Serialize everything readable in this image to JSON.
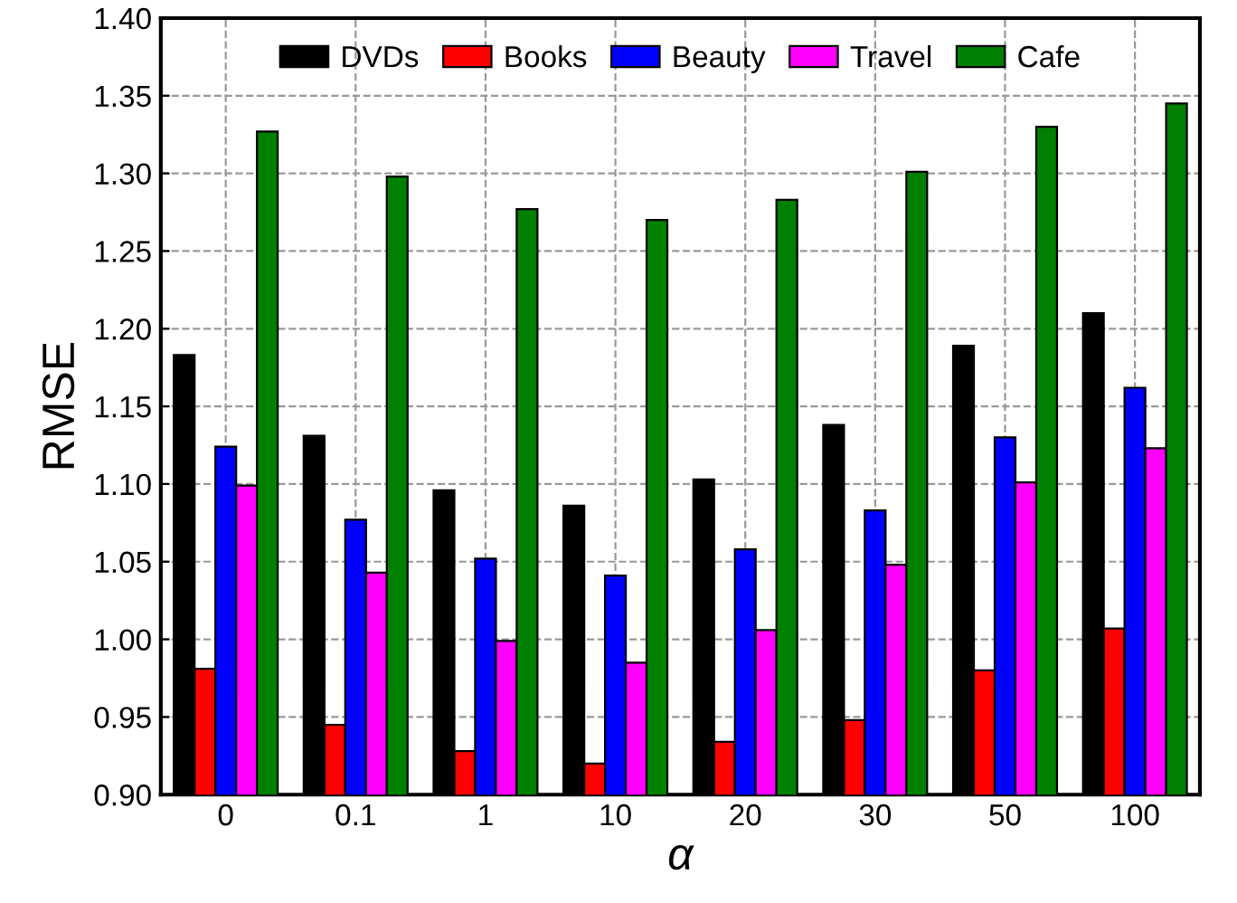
{
  "chart_data": {
    "type": "bar",
    "xlabel": "α",
    "ylabel": "RMSE",
    "categories": [
      "0",
      "0.1",
      "1",
      "10",
      "20",
      "30",
      "50",
      "100"
    ],
    "series": [
      {
        "name": "DVDs",
        "color": "#000000",
        "values": [
          1.183,
          1.131,
          1.096,
          1.086,
          1.103,
          1.138,
          1.189,
          1.21
        ]
      },
      {
        "name": "Books",
        "color": "#ff0000",
        "values": [
          0.981,
          0.945,
          0.928,
          0.92,
          0.934,
          0.948,
          0.98,
          1.007
        ]
      },
      {
        "name": "Beauty",
        "color": "#0000ff",
        "values": [
          1.124,
          1.077,
          1.052,
          1.041,
          1.058,
          1.083,
          1.13,
          1.162
        ]
      },
      {
        "name": "Travel",
        "color": "#ff00ff",
        "values": [
          1.099,
          1.043,
          0.999,
          0.985,
          1.006,
          1.048,
          1.101,
          1.123
        ]
      },
      {
        "name": "Cafe",
        "color": "#008000",
        "values": [
          1.327,
          1.298,
          1.277,
          1.27,
          1.283,
          1.301,
          1.33,
          1.345
        ]
      }
    ],
    "ylim": [
      0.9,
      1.4
    ],
    "yticks": [
      {
        "value": 0.9,
        "label": "0.90"
      },
      {
        "value": 0.95,
        "label": "0.95"
      },
      {
        "value": 1.0,
        "label": "1.00"
      },
      {
        "value": 1.05,
        "label": "1.05"
      },
      {
        "value": 1.1,
        "label": "1.10"
      },
      {
        "value": 1.15,
        "label": "1.15"
      },
      {
        "value": 1.2,
        "label": "1.20"
      },
      {
        "value": 1.25,
        "label": "1.25"
      },
      {
        "value": 1.3,
        "label": "1.30"
      },
      {
        "value": 1.35,
        "label": "1.35"
      },
      {
        "value": 1.4,
        "label": "1.40"
      }
    ],
    "grid": true,
    "legend": "top"
  }
}
